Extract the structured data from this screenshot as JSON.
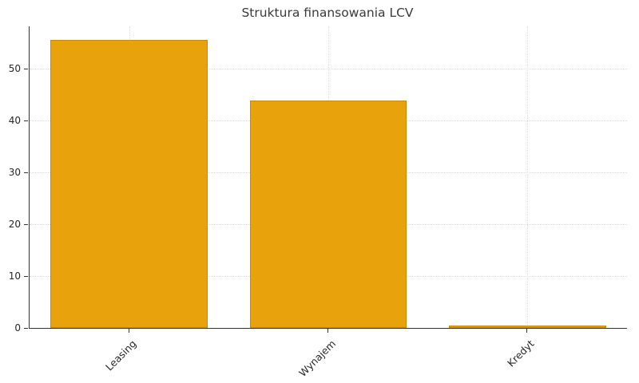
{
  "chart_data": {
    "type": "bar",
    "title": "Struktura finansowania LCV",
    "categories": [
      "Leasing",
      "Wynajem",
      "Kredyt"
    ],
    "values": [
      55.6,
      43.9,
      0.5
    ],
    "xlabel": "",
    "ylabel": "",
    "ylim": [
      0,
      58.2
    ],
    "yticks": [
      0,
      10,
      20,
      30,
      40,
      50
    ],
    "grid": true,
    "legend": false,
    "bar_color": "#E8A30C",
    "bar_edge_color": "#C98B05",
    "axis_color": "#333333",
    "grid_color": "#DCDCDC",
    "text_color": "#262626"
  }
}
